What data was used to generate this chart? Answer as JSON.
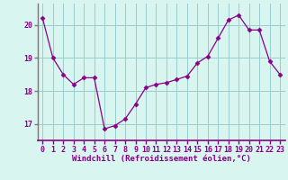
{
  "x": [
    0,
    1,
    2,
    3,
    4,
    5,
    6,
    7,
    8,
    9,
    10,
    11,
    12,
    13,
    14,
    15,
    16,
    17,
    18,
    19,
    20,
    21,
    22,
    23
  ],
  "y": [
    20.2,
    19.0,
    18.5,
    18.2,
    18.4,
    18.4,
    16.85,
    16.95,
    17.15,
    17.6,
    18.1,
    18.2,
    18.25,
    18.35,
    18.45,
    18.85,
    19.05,
    19.6,
    20.15,
    20.3,
    19.85,
    19.85,
    18.9,
    18.5
  ],
  "line_color": "#880088",
  "marker": "D",
  "marker_size": 2.5,
  "bg_color": "#d8f5f0",
  "grid_color": "#99cccc",
  "xlabel": "Windchill (Refroidissement éolien,°C)",
  "xlabel_color": "#880088",
  "xlabel_fontsize": 6.5,
  "tick_color": "#880088",
  "tick_fontsize": 6.0,
  "ylim": [
    16.5,
    20.65
  ],
  "yticks": [
    17,
    18,
    19,
    20
  ],
  "xticks": [
    0,
    1,
    2,
    3,
    4,
    5,
    6,
    7,
    8,
    9,
    10,
    11,
    12,
    13,
    14,
    15,
    16,
    17,
    18,
    19,
    20,
    21,
    22,
    23
  ],
  "spine_color": "#777777",
  "bottom_line_color": "#880088"
}
